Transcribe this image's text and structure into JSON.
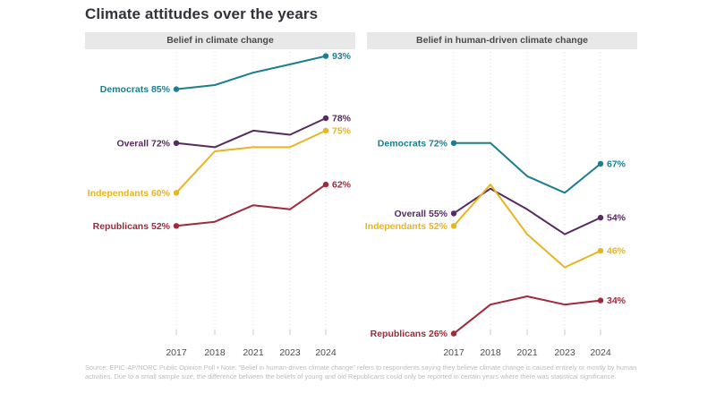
{
  "page": {
    "title": "Climate attitudes over the years",
    "footer_note": "Source: EPIC-AP/NORC Public Opinion Poll • Note: \"Belief in human-driven climate change\" refers to respondents saying they believe climate change is caused entirely or mostly by human activities. Due to a small sample size, the difference between the beliefs of young and old Republicans could only be reported in certain years where there was statistical significance."
  },
  "colors": {
    "teal": "#1b7e8f",
    "purple": "#572a61",
    "gold": "#e9b421",
    "red": "#a02a3a",
    "grid": "#dcdcdc",
    "tick": "#c9c9c9",
    "axis_text": "#4d4d4d",
    "header_bg": "#e8e8e8",
    "header_text": "#4a4a4a",
    "title_text": "#32323a",
    "footer_text": "#bcbcbc"
  },
  "chart_data": [
    {
      "type": "line",
      "title": "Belief in climate change",
      "x_labels": [
        "2017",
        "2018",
        "2021",
        "2023",
        "2024"
      ],
      "ylim": [
        27,
        94
      ],
      "grid": "vertical-dotted",
      "series": [
        {
          "name": "Democrats",
          "color": "#1b7e8f",
          "values": [
            85,
            86,
            89,
            91,
            93
          ],
          "start_label": "Democrats 85%",
          "end_label": "93%"
        },
        {
          "name": "Overall",
          "color": "#572a61",
          "values": [
            72,
            71,
            75,
            74,
            78
          ],
          "start_label": "Overall 72%",
          "end_label": "78%"
        },
        {
          "name": "Independants",
          "color": "#e9b421",
          "values": [
            60,
            70,
            71,
            71,
            75
          ],
          "start_label": "Independants 60%",
          "end_label": "75%"
        },
        {
          "name": "Republicans",
          "color": "#a02a3a",
          "values": [
            52,
            53,
            57,
            56,
            62
          ],
          "start_label": "Republicans 52%",
          "end_label": "62%"
        }
      ]
    },
    {
      "type": "line",
      "title": "Belief in human-driven climate change",
      "x_labels": [
        "2017",
        "2018",
        "2021",
        "2023",
        "2024"
      ],
      "ylim": [
        27,
        94
      ],
      "grid": "vertical-dotted",
      "series": [
        {
          "name": "Democrats",
          "color": "#1b7e8f",
          "values": [
            72,
            72,
            64,
            60,
            67
          ],
          "start_label": "Democrats 72%",
          "end_label": "67%"
        },
        {
          "name": "Overall",
          "color": "#572a61",
          "values": [
            55,
            61,
            56,
            50,
            54
          ],
          "start_label": "Overall 55%",
          "end_label": "54%"
        },
        {
          "name": "Independants",
          "color": "#e9b421",
          "values": [
            52,
            62,
            50,
            42,
            46
          ],
          "start_label": "Independants 52%",
          "end_label": "46%"
        },
        {
          "name": "Republicans",
          "color": "#a02a3a",
          "values": [
            26,
            33,
            35,
            33,
            34
          ],
          "start_label": "Republicans 26%",
          "end_label": "34%"
        }
      ]
    }
  ]
}
